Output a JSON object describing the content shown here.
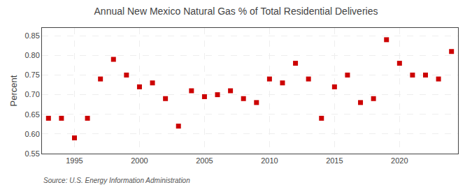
{
  "chart_data": {
    "type": "scatter",
    "title": "Annual New Mexico Natural Gas % of Total Residential Deliveries",
    "ylabel": "Percent",
    "annotations": [
      {
        "text": "Source: U.S. Energy Information Administration"
      }
    ],
    "color": "#cc0000",
    "marker": "square",
    "grid": true,
    "xlim": [
      1992.5,
      2024.5
    ],
    "xticks": [
      1995,
      2000,
      2005,
      2010,
      2015,
      2020
    ],
    "ylim": [
      0.55,
      0.87
    ],
    "yticks": [
      0.55,
      {
        "value": 0.6,
        "label": "0.60"
      },
      0.65,
      {
        "value": 0.7,
        "label": "0.70"
      },
      0.75,
      {
        "value": 0.8,
        "label": "0.80"
      },
      0.85
    ],
    "x": [
      1993,
      1994,
      1995,
      1996,
      1997,
      1998,
      1999,
      2000,
      2001,
      2002,
      2003,
      2004,
      2005,
      2006,
      2007,
      2008,
      2009,
      2010,
      2011,
      2012,
      2013,
      2014,
      2015,
      2016,
      2017,
      2018,
      2019,
      2020,
      2021,
      2022,
      2023,
      2024
    ],
    "values": [
      0.64,
      0.64,
      0.59,
      0.64,
      0.74,
      0.79,
      0.75,
      0.72,
      0.73,
      0.69,
      0.62,
      0.71,
      0.695,
      0.7,
      0.71,
      0.69,
      0.68,
      0.74,
      0.73,
      0.78,
      0.74,
      0.64,
      0.72,
      0.75,
      0.68,
      0.69,
      0.84,
      0.78,
      0.75,
      0.75,
      0.74,
      0.81
    ]
  }
}
